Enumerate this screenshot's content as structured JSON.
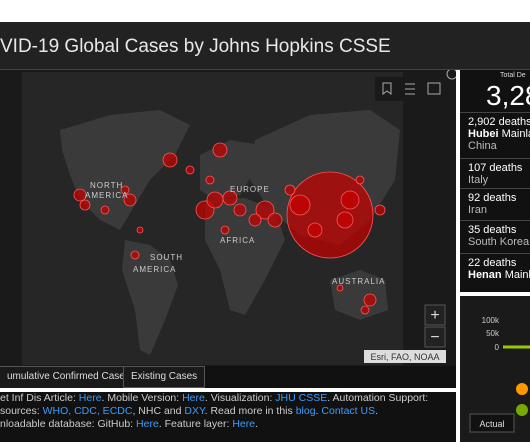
{
  "header": {
    "title": "VID-19 Global Cases by Johns Hopkins CSSE"
  },
  "map": {
    "labels": [
      "NORTH",
      "AMERICA",
      "EUROPE",
      "AFRICA",
      "SOUTH",
      "AMERICA",
      "AUSTRALIA"
    ],
    "attribution": "Esri, FAO, NOAA",
    "zoom_in": "+",
    "zoom_out": "−"
  },
  "tabs": [
    "umulative Confirmed Cases",
    "Existing Cases"
  ],
  "info": {
    "lines": [
      [
        {
          "text": "et Inf Dis Article: "
        },
        {
          "text": "Here",
          "link": true
        },
        {
          "text": ". Mobile Version: "
        },
        {
          "text": "Here",
          "link": true
        },
        {
          "text": ". Visualization: "
        },
        {
          "text": "JHU CSSE",
          "link": true
        },
        {
          "text": ". Automation Support:"
        }
      ],
      [
        {
          "text": "sources: "
        },
        {
          "text": "WHO, CDC, ECDC",
          "link": true
        },
        {
          "text": ", NHC and "
        },
        {
          "text": "DXY",
          "link": true
        },
        {
          "text": ". Read more in this "
        },
        {
          "text": "blog",
          "link": true
        },
        {
          "text": ". "
        },
        {
          "text": "Contact US",
          "link": true
        },
        {
          "text": "."
        }
      ],
      [
        {
          "text": "nloadable database: GitHub: "
        },
        {
          "text": "Here",
          "link": true
        },
        {
          "text": ". Feature layer: "
        },
        {
          "text": "Here",
          "link": true
        },
        {
          "text": "."
        }
      ]
    ]
  },
  "total": {
    "label": "Total De",
    "value": "3,28"
  },
  "entries": [
    {
      "deaths": "2,902 deaths",
      "place": "Hubei",
      "rest": "Mainla",
      "country": "China"
    },
    {
      "deaths": "107 deaths",
      "country": "Italy"
    },
    {
      "deaths": "92 deaths",
      "country": "Iran"
    },
    {
      "deaths": "35 deaths",
      "country": "South Korea"
    },
    {
      "deaths": "22 deaths",
      "place": "Henan",
      "rest": "Mainla"
    }
  ],
  "chart": {
    "labels": [
      "100k",
      "50k",
      "0"
    ],
    "tab": "Actual"
  }
}
